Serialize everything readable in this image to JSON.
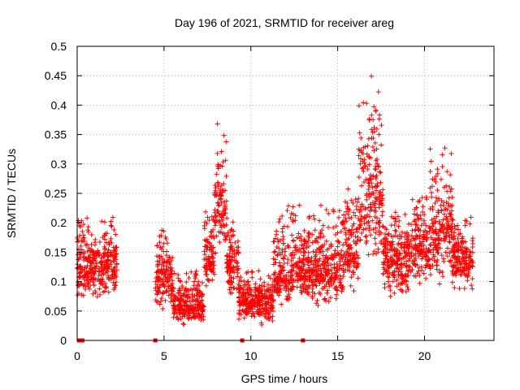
{
  "chart_data": {
    "type": "scatter",
    "title": "Day 196 of 2021, SRMTID for receiver areg",
    "xlabel": "GPS time / hours",
    "ylabel": "SRMTID / TECUs",
    "xlim": [
      0,
      24
    ],
    "ylim": [
      0,
      0.5
    ],
    "x_ticks": [
      0,
      5,
      10,
      15,
      20
    ],
    "x_tick_labels": [
      "0",
      "5",
      "10",
      "15",
      "20"
    ],
    "y_ticks": [
      0,
      0.05,
      0.1,
      0.15,
      0.2,
      0.25,
      0.3,
      0.35,
      0.4,
      0.45,
      0.5
    ],
    "y_tick_labels": [
      "0",
      "0.05",
      "0.1",
      "0.15",
      "0.2",
      "0.25",
      "0.3",
      "0.35",
      "0.4",
      "0.45",
      "0.5"
    ],
    "grid": true,
    "marker": "+",
    "color": "#ff0000",
    "series": [
      {
        "name": "SRMTID",
        "description_density": "dense per-satellite scatter",
        "envelope": [
          {
            "start": 0.0,
            "end": 2.3,
            "low": 0.06,
            "mid": 0.125,
            "high": 0.21
          },
          {
            "start": 4.5,
            "end": 5.5,
            "low": 0.04,
            "mid": 0.11,
            "high": 0.19
          },
          {
            "start": 5.5,
            "end": 7.3,
            "low": 0.02,
            "mid": 0.06,
            "high": 0.12
          },
          {
            "start": 7.3,
            "end": 7.9,
            "low": 0.08,
            "mid": 0.14,
            "high": 0.22
          },
          {
            "start": 7.9,
            "end": 8.6,
            "low": 0.13,
            "mid": 0.22,
            "high": 0.37
          },
          {
            "start": 8.6,
            "end": 9.3,
            "low": 0.06,
            "mid": 0.13,
            "high": 0.21
          },
          {
            "start": 9.3,
            "end": 11.3,
            "low": 0.02,
            "mid": 0.065,
            "high": 0.12
          },
          {
            "start": 11.3,
            "end": 12.3,
            "low": 0.05,
            "mid": 0.11,
            "high": 0.23
          },
          {
            "start": 12.3,
            "end": 15.3,
            "low": 0.05,
            "mid": 0.12,
            "high": 0.23
          },
          {
            "start": 15.3,
            "end": 16.2,
            "low": 0.08,
            "mid": 0.15,
            "high": 0.27
          },
          {
            "start": 16.2,
            "end": 17.6,
            "low": 0.12,
            "mid": 0.24,
            "high": 0.46
          },
          {
            "start": 17.6,
            "end": 19.3,
            "low": 0.06,
            "mid": 0.14,
            "high": 0.22
          },
          {
            "start": 19.3,
            "end": 20.3,
            "low": 0.08,
            "mid": 0.16,
            "high": 0.26
          },
          {
            "start": 20.3,
            "end": 21.6,
            "low": 0.07,
            "mid": 0.19,
            "high": 0.33
          },
          {
            "start": 21.6,
            "end": 22.8,
            "low": 0.07,
            "mid": 0.14,
            "high": 0.21
          }
        ]
      }
    ],
    "zero_markers_x": [
      0.1,
      0.3,
      4.5,
      9.5,
      13.0
    ]
  }
}
